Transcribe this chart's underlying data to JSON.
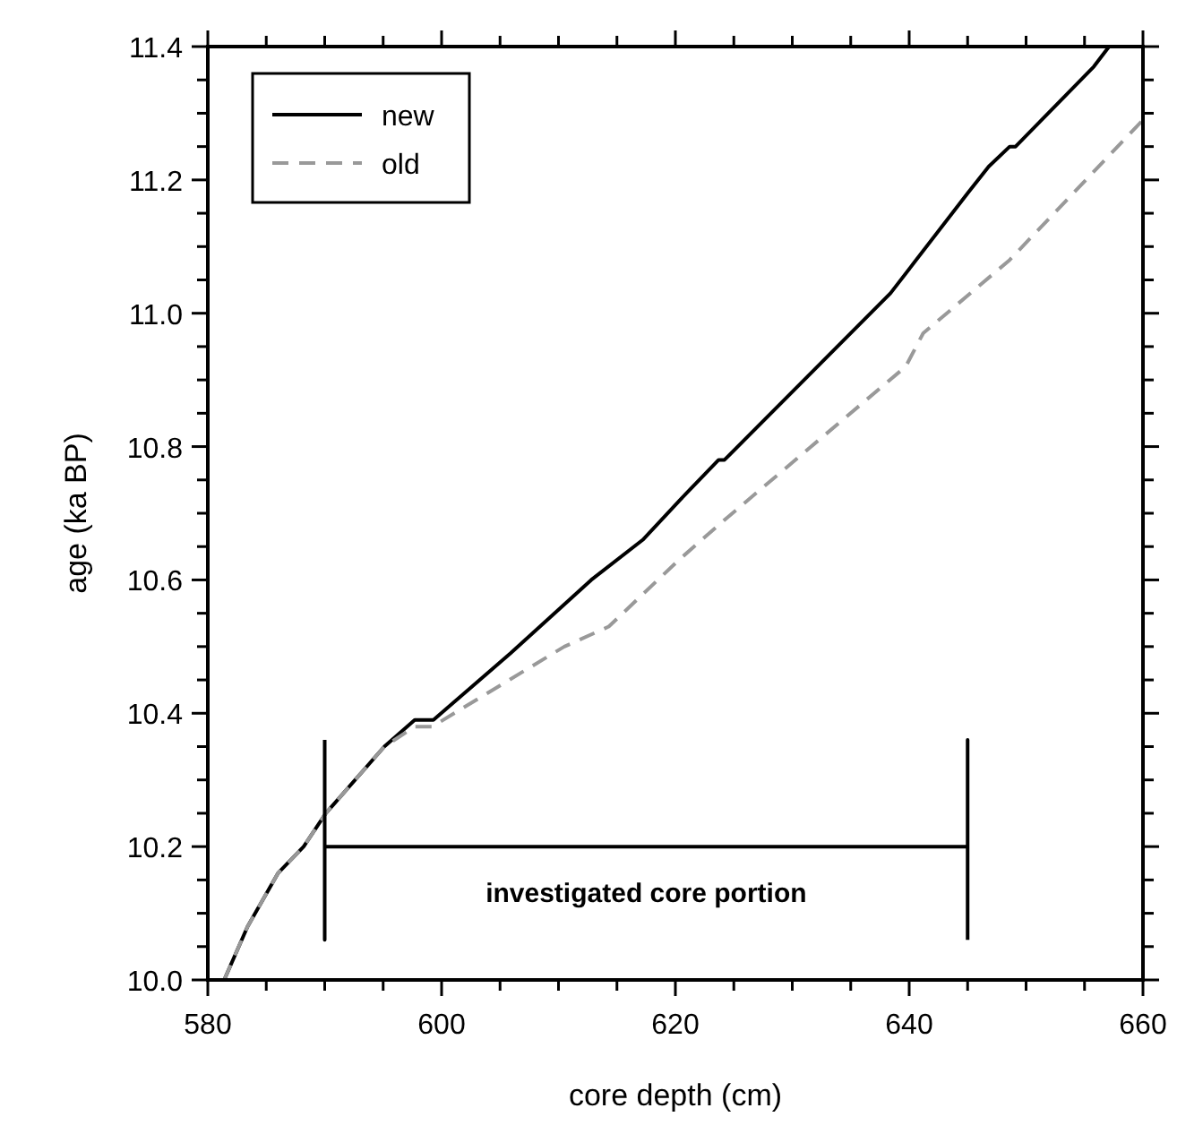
{
  "chart_data": {
    "type": "line",
    "xlabel": "core depth (cm)",
    "ylabel": "age (ka BP)",
    "xlim": [
      580,
      660
    ],
    "xticks": [
      580,
      600,
      620,
      640,
      660
    ],
    "ylim": [
      10.0,
      11.4
    ],
    "yticks": [
      {
        "value": 10.0,
        "label": "10.0"
      },
      {
        "value": 10.2,
        "label": "10.2"
      },
      {
        "value": 10.4,
        "label": "10.4"
      },
      {
        "value": 10.6,
        "label": "10.6"
      },
      {
        "value": 10.8,
        "label": "10.8"
      },
      {
        "value": 11.0,
        "label": "11.0"
      },
      {
        "value": 11.2,
        "label": "11.2"
      },
      {
        "value": 11.4,
        "label": "11.4"
      }
    ],
    "legend": "top left",
    "grid": false,
    "series": [
      {
        "name": "new",
        "color": "#000000",
        "line_style": "solid",
        "x": [
          581.4,
          583.4,
          586,
          588.2,
          590.1,
          595.1,
          597.7,
          599.3,
          605.9,
          612.8,
          617.2,
          620.4,
          623.7,
          624.2,
          638.4,
          645,
          646.8,
          648.6,
          649.1,
          655.8,
          657.1
        ],
        "values": [
          10.0,
          10.08,
          10.16,
          10.2,
          10.25,
          10.35,
          10.39,
          10.39,
          10.49,
          10.6,
          10.66,
          10.72,
          10.78,
          10.78,
          11.03,
          11.18,
          11.22,
          11.25,
          11.25,
          11.37,
          11.4
        ]
      },
      {
        "name": "old",
        "color": "#999999",
        "line_style": "dashed",
        "x": [
          581.4,
          583.4,
          586,
          588.2,
          590.1,
          595.1,
          597.7,
          599.2,
          603.9,
          610.5,
          614.3,
          620.3,
          624.2,
          639.7,
          641.2,
          648.6,
          660
        ],
        "values": [
          10.0,
          10.08,
          10.16,
          10.2,
          10.25,
          10.35,
          10.38,
          10.38,
          10.43,
          10.5,
          10.53,
          10.63,
          10.69,
          10.92,
          10.97,
          11.08,
          11.29
        ]
      },
      {
        "color": "#000000",
        "line_style": "solid",
        "x": [
          590,
          590,
          590,
          645,
          645,
          645
        ],
        "values": [
          10.36,
          10.06,
          10.2,
          10.2,
          10.36,
          10.06
        ]
      }
    ],
    "annotations": [
      {
        "text": "investigated core portion",
        "x": 617.5,
        "y": 10.2
      }
    ]
  }
}
